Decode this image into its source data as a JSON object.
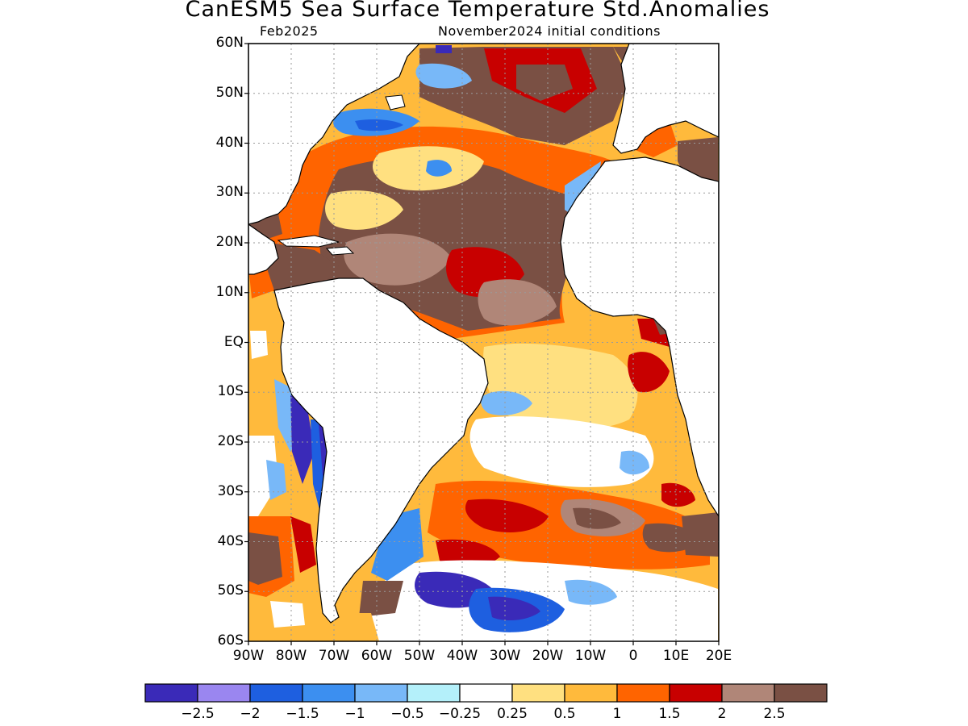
{
  "title": "CanESM5 Sea Surface Temperature Std.Anomalies",
  "valid_month": "Feb2025",
  "initial_conditions": "November2024 initial conditions",
  "lat_ticks": [
    "60N",
    "50N",
    "40N",
    "30N",
    "20N",
    "10N",
    "EQ",
    "10S",
    "20S",
    "30S",
    "40S",
    "50S",
    "60S"
  ],
  "lon_ticks": [
    "90W",
    "80W",
    "70W",
    "60W",
    "50W",
    "40W",
    "30W",
    "20W",
    "10W",
    "0",
    "10E",
    "20E"
  ],
  "colorbar": {
    "colors": [
      "#3a2ab8",
      "#9a86f0",
      "#1e5fe0",
      "#3c8ff0",
      "#78b8f8",
      "#b4f0fa",
      "#ffffff",
      "#ffe080",
      "#ffba3c",
      "#ff6400",
      "#c80000",
      "#b08678",
      "#7a5044"
    ],
    "labels": [
      "-2.5",
      "-2",
      "-1.5",
      "-1",
      "-0.5",
      "-0.25",
      "0.25",
      "0.5",
      "1",
      "1.5",
      "2",
      "2.5"
    ]
  },
  "colors": {
    "land": "#ffffff",
    "coast": "#000000",
    "grid": "#9a9a9a"
  }
}
